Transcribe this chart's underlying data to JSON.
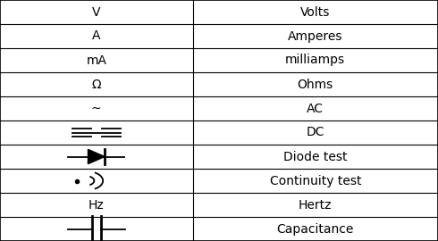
{
  "rows": [
    [
      "V",
      "Volts"
    ],
    [
      "A",
      "Amperes"
    ],
    [
      "mA",
      "milliamps"
    ],
    [
      "Ω",
      "Ohms"
    ],
    [
      "~",
      "AC"
    ],
    [
      "dc_sym",
      "DC"
    ],
    [
      "diode_sym",
      "Diode test"
    ],
    [
      "cont_sym",
      "Continuity test"
    ],
    [
      "Hz",
      "Hertz"
    ],
    [
      "cap_sym",
      "Capacitance"
    ]
  ],
  "col_split": 0.44,
  "bg_color": "#ffffff",
  "border_color": "#000000",
  "text_color": "#000000",
  "font_size": 10,
  "fig_width": 4.9,
  "fig_height": 2.7,
  "dpi": 100
}
